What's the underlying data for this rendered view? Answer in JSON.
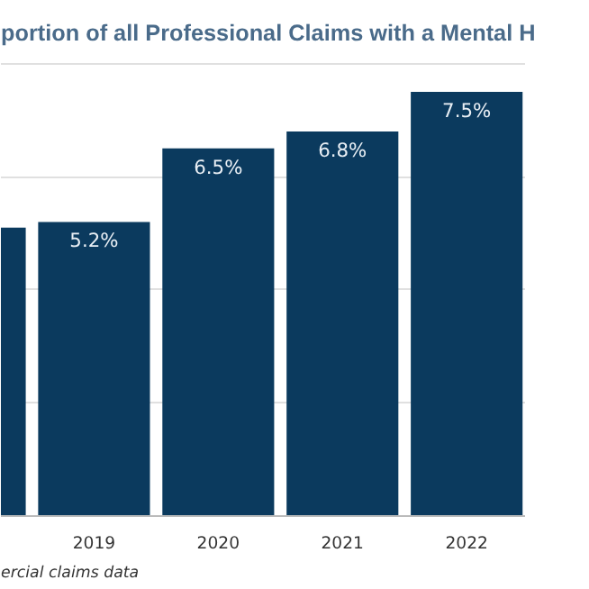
{
  "chart_data": {
    "type": "bar",
    "title": "portion of all Professional Claims with a Mental H",
    "categories": [
      null,
      "2019",
      "2020",
      "2021",
      "2022"
    ],
    "values": [
      5.1,
      5.2,
      6.5,
      6.8,
      7.5
    ],
    "value_labels": [
      null,
      "5.2%",
      "6.5%",
      "6.8%",
      "7.5%"
    ],
    "color": "#0b3a5e",
    "tick_labels": "x",
    "grid": "y",
    "annotations": [
      "ercial claims data"
    ]
  }
}
